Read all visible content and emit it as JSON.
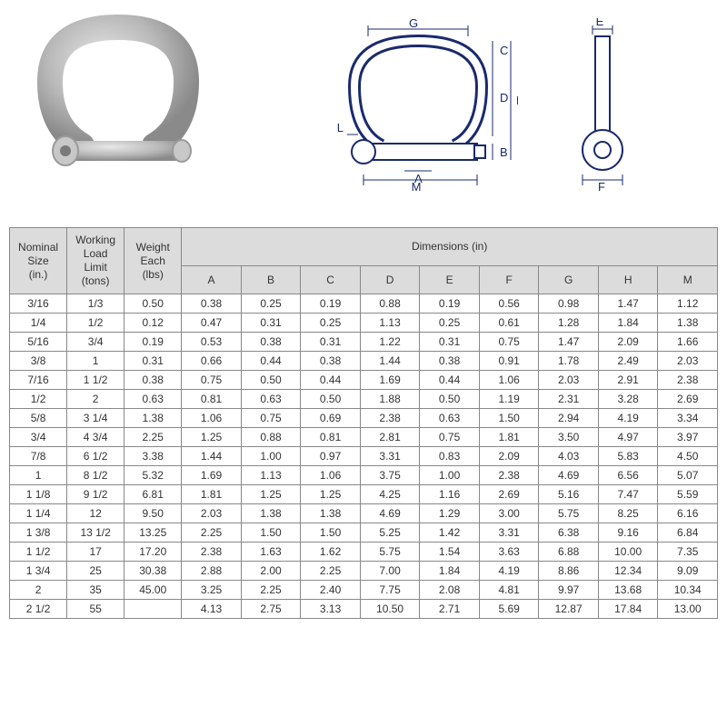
{
  "diagram_labels": [
    "A",
    "B",
    "C",
    "D",
    "E",
    "F",
    "G",
    "H",
    "L",
    "M"
  ],
  "colors": {
    "header_bg": "#dcdcdc",
    "border": "#888888",
    "text": "#333333",
    "diagram_line": "#1a2a6c"
  },
  "table": {
    "header_main": {
      "nominal": "Nominal\nSize\n(in.)",
      "wll": "Working\nLoad\nLimit\n(tons)",
      "weight": "Weight\nEach\n(lbs)",
      "dimensions": "Dimensions (in)"
    },
    "dim_cols": [
      "A",
      "B",
      "C",
      "D",
      "E",
      "F",
      "G",
      "H",
      "M"
    ],
    "rows": [
      [
        "3/16",
        "1/3",
        "0.50",
        "0.38",
        "0.25",
        "0.19",
        "0.88",
        "0.19",
        "0.56",
        "0.98",
        "1.47",
        "1.12"
      ],
      [
        "1/4",
        "1/2",
        "0.12",
        "0.47",
        "0.31",
        "0.25",
        "1.13",
        "0.25",
        "0.61",
        "1.28",
        "1.84",
        "1.38"
      ],
      [
        "5/16",
        "3/4",
        "0.19",
        "0.53",
        "0.38",
        "0.31",
        "1.22",
        "0.31",
        "0.75",
        "1.47",
        "2.09",
        "1.66"
      ],
      [
        "3/8",
        "1",
        "0.31",
        "0.66",
        "0.44",
        "0.38",
        "1.44",
        "0.38",
        "0.91",
        "1.78",
        "2.49",
        "2.03"
      ],
      [
        "7/16",
        "1 1/2",
        "0.38",
        "0.75",
        "0.50",
        "0.44",
        "1.69",
        "0.44",
        "1.06",
        "2.03",
        "2.91",
        "2.38"
      ],
      [
        "1/2",
        "2",
        "0.63",
        "0.81",
        "0.63",
        "0.50",
        "1.88",
        "0.50",
        "1.19",
        "2.31",
        "3.28",
        "2.69"
      ],
      [
        "5/8",
        "3 1/4",
        "1.38",
        "1.06",
        "0.75",
        "0.69",
        "2.38",
        "0.63",
        "1.50",
        "2.94",
        "4.19",
        "3.34"
      ],
      [
        "3/4",
        "4 3/4",
        "2.25",
        "1.25",
        "0.88",
        "0.81",
        "2.81",
        "0.75",
        "1.81",
        "3.50",
        "4.97",
        "3.97"
      ],
      [
        "7/8",
        "6 1/2",
        "3.38",
        "1.44",
        "1.00",
        "0.97",
        "3.31",
        "0.83",
        "2.09",
        "4.03",
        "5.83",
        "4.50"
      ],
      [
        "1",
        "8 1/2",
        "5.32",
        "1.69",
        "1.13",
        "1.06",
        "3.75",
        "1.00",
        "2.38",
        "4.69",
        "6.56",
        "5.07"
      ],
      [
        "1 1/8",
        "9 1/2",
        "6.81",
        "1.81",
        "1.25",
        "1.25",
        "4.25",
        "1.16",
        "2.69",
        "5.16",
        "7.47",
        "5.59"
      ],
      [
        "1 1/4",
        "12",
        "9.50",
        "2.03",
        "1.38",
        "1.38",
        "4.69",
        "1.29",
        "3.00",
        "5.75",
        "8.25",
        "6.16"
      ],
      [
        "1 3/8",
        "13 1/2",
        "13.25",
        "2.25",
        "1.50",
        "1.50",
        "5.25",
        "1.42",
        "3.31",
        "6.38",
        "9.16",
        "6.84"
      ],
      [
        "1 1/2",
        "17",
        "17.20",
        "2.38",
        "1.63",
        "1.62",
        "5.75",
        "1.54",
        "3.63",
        "6.88",
        "10.00",
        "7.35"
      ],
      [
        "1 3/4",
        "25",
        "30.38",
        "2.88",
        "2.00",
        "2.25",
        "7.00",
        "1.84",
        "4.19",
        "8.86",
        "12.34",
        "9.09"
      ],
      [
        "2",
        "35",
        "45.00",
        "3.25",
        "2.25",
        "2.40",
        "7.75",
        "2.08",
        "4.81",
        "9.97",
        "13.68",
        "10.34"
      ],
      [
        "2 1/2",
        "55",
        "",
        "4.13",
        "2.75",
        "3.13",
        "10.50",
        "2.71",
        "5.69",
        "12.87",
        "17.84",
        "13.00"
      ]
    ]
  }
}
